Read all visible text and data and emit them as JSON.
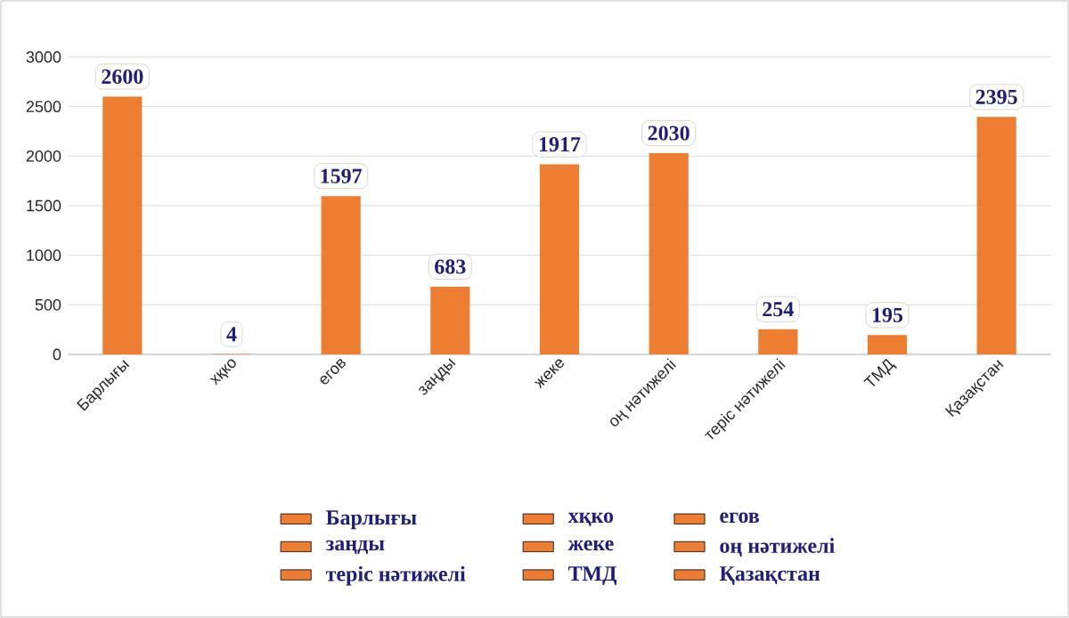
{
  "chart_data": {
    "type": "bar",
    "categories": [
      "Барлығы",
      "хқко",
      "егов",
      "заңды",
      "жеке",
      "оң нәтижелі",
      "теріс нәтижелі",
      "ТМД",
      "Қазақстан"
    ],
    "series": [
      {
        "name": "Барлығы",
        "color": "#ed7d31",
        "values": [
          2600,
          null,
          null,
          null,
          null,
          null,
          null,
          null,
          null
        ]
      },
      {
        "name": "хқко",
        "color": "#ed7d31",
        "values": [
          null,
          4,
          null,
          null,
          null,
          null,
          null,
          null,
          null
        ]
      },
      {
        "name": "егов",
        "color": "#ed7d31",
        "values": [
          null,
          null,
          1597,
          null,
          null,
          null,
          null,
          null,
          null
        ]
      },
      {
        "name": "заңды",
        "color": "#ed7d31",
        "values": [
          null,
          null,
          null,
          683,
          null,
          null,
          null,
          null,
          null
        ]
      },
      {
        "name": "жеке",
        "color": "#ed7d31",
        "values": [
          null,
          null,
          null,
          null,
          1917,
          null,
          null,
          null,
          null
        ]
      },
      {
        "name": "оң нәтижелі",
        "color": "#ed7d31",
        "values": [
          null,
          null,
          null,
          null,
          null,
          2030,
          null,
          null,
          null
        ]
      },
      {
        "name": "теріс нәтижелі",
        "color": "#ed7d31",
        "values": [
          null,
          null,
          null,
          null,
          null,
          null,
          254,
          null,
          null
        ]
      },
      {
        "name": "ТМД",
        "color": "#ed7d31",
        "values": [
          null,
          null,
          null,
          null,
          null,
          null,
          null,
          195,
          null
        ]
      },
      {
        "name": "Қазақстан",
        "color": "#ed7d31",
        "values": [
          null,
          null,
          null,
          null,
          null,
          null,
          null,
          null,
          2395
        ]
      }
    ],
    "ylim": [
      0,
      3000
    ],
    "yticks": [
      0,
      500,
      1000,
      1500,
      2000,
      2500,
      3000
    ],
    "grid": "y",
    "data_labels": true,
    "legend": "bottom"
  }
}
